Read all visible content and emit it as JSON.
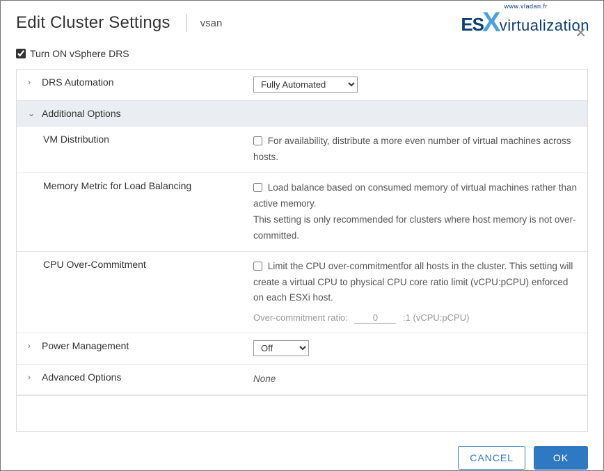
{
  "header": {
    "title": "Edit Cluster Settings",
    "subtitle": "vsan",
    "logo_url": "www.vladan.fr",
    "logo_es": "ES",
    "logo_x": "X",
    "logo_virt": "virtualization"
  },
  "master_toggle": {
    "label": "Turn ON vSphere DRS",
    "checked": true
  },
  "sections": {
    "drs_automation": {
      "label": "DRS Automation",
      "expanded": false,
      "value": "Fully Automated",
      "options": [
        "Fully Automated"
      ]
    },
    "additional_options": {
      "label": "Additional Options",
      "expanded": true,
      "rows": {
        "vm_distribution": {
          "label": "VM Distribution",
          "checked": false,
          "text": "For availability, distribute a more even number of virtual machines across hosts."
        },
        "memory_metric": {
          "label": "Memory Metric for Load Balancing",
          "checked": false,
          "text": "Load balance based on consumed memory of virtual machines rather than active memory.",
          "note": "This setting is only recommended for clusters where host memory is not over-committed."
        },
        "cpu_overcommit": {
          "label": "CPU Over-Commitment",
          "checked": false,
          "text": "Limit the CPU over-commitmentfor all hosts in the cluster. This setting will create a virtual CPU to physical CPU core ratio limit (vCPU:pCPU) enforced on each ESXi host.",
          "ratio_label": "Over-commitment ratio:",
          "ratio_value": "0",
          "ratio_suffix": ":1 (vCPU:pCPU)"
        }
      }
    },
    "power_management": {
      "label": "Power Management",
      "expanded": false,
      "value": "Off",
      "options": [
        "Off"
      ]
    },
    "advanced_options": {
      "label": "Advanced Options",
      "expanded": false,
      "value_text": "None"
    }
  },
  "footer": {
    "cancel": "CANCEL",
    "ok": "OK"
  },
  "colors": {
    "primary": "#2f78c2",
    "expanded_bg": "#eaeef2",
    "border": "#dcdcdc",
    "text": "#333333",
    "muted": "#999999"
  }
}
